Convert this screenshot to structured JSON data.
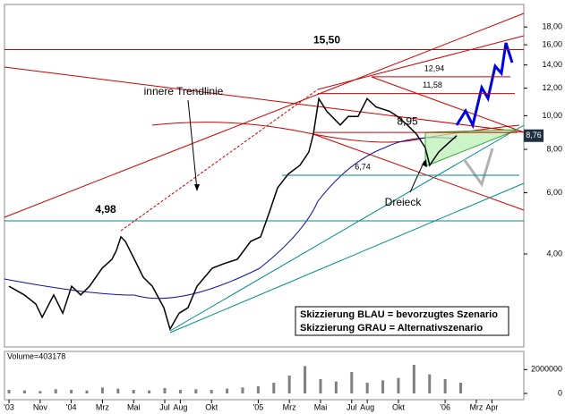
{
  "chart_data": {
    "type": "line",
    "x": [
      0,
      0.98,
      1.72,
      2.13,
      2.87,
      3.45,
      4.02,
      4.6,
      5.17,
      5.98,
      6.61,
      6.9,
      7.18,
      7.47,
      8.05,
      8.62,
      9.2,
      9.94,
      10.34,
      10.92,
      11.49,
      12.07,
      13.05,
      13.79,
      14.66,
      15.52,
      16.15,
      16.67,
      17.24,
      17.93,
      18.68,
      19.25,
      19.54,
      19.89,
      20.4,
      21.26,
      21.78,
      22.41,
      22.99,
      23.56,
      24.43,
      24.94,
      25.57,
      26.15,
      26.72,
      27.01,
      27.59,
      28.16,
      28.74
    ],
    "values": [
      3.23,
      3.05,
      2.87,
      2.63,
      3.05,
      2.7,
      3.23,
      3.05,
      3.23,
      3.64,
      3.86,
      4.1,
      4.48,
      4.35,
      3.86,
      3.43,
      3.23,
      2.8,
      2.43,
      2.7,
      2.8,
      3.23,
      3.64,
      3.75,
      3.86,
      4.35,
      4.48,
      5.2,
      6.2,
      6.8,
      7.2,
      7.86,
      8.86,
      11.2,
      10.3,
      9.4,
      9.95,
      9.95,
      11.2,
      10.6,
      10.3,
      9.95,
      9.4,
      8.86,
      8.1,
      7.2,
      7.86,
      8.3,
      8.76
    ],
    "color": "#000000",
    "log_scale": true,
    "xlim": [
      -0.29,
      33.05
    ],
    "ylim": [
      2.16,
      20.9
    ],
    "xticks": [
      {
        "value": 0,
        "label": "'03"
      },
      {
        "value": 2,
        "label": "Nov"
      },
      {
        "value": 4,
        "label": "'04"
      },
      {
        "value": 6,
        "label": "Mrz"
      },
      {
        "value": 8,
        "label": "Mai"
      },
      {
        "value": 10,
        "label": "Jul"
      },
      {
        "value": 11,
        "label": "Aug"
      },
      {
        "value": 13,
        "label": "Okt"
      },
      {
        "value": 16,
        "label": "'05"
      },
      {
        "value": 18,
        "label": "Mrz"
      },
      {
        "value": 20,
        "label": "Mai"
      },
      {
        "value": 22,
        "label": "Jul"
      },
      {
        "value": 23,
        "label": "Aug"
      },
      {
        "value": 25,
        "label": "Okt"
      },
      {
        "value": 28,
        "label": "'06"
      },
      {
        "value": 30,
        "label": "Mrz"
      },
      {
        "value": 31,
        "label": "Apr"
      }
    ],
    "yticks": [
      {
        "value": 4,
        "label": "4,00"
      },
      {
        "value": 6,
        "label": "6,00"
      },
      {
        "value": 8,
        "label": "8,00"
      },
      {
        "value": 10,
        "label": "10,00"
      },
      {
        "value": 12,
        "label": "12,00"
      },
      {
        "value": 14,
        "label": "14,00"
      },
      {
        "value": 16,
        "label": "16,00"
      },
      {
        "value": 18,
        "label": "18,00"
      }
    ],
    "levels": [
      {
        "value": 15.5,
        "label": "15,50"
      },
      {
        "value": 4.98,
        "label": "4,98"
      },
      {
        "value": 12.94,
        "label": "12,94"
      },
      {
        "value": 11.58,
        "label": "11,58"
      },
      {
        "value": 8.95,
        "label": "8,95"
      },
      {
        "value": 6.74,
        "label": "6,74"
      }
    ],
    "last_price": {
      "value": 8.76,
      "label": "8,76"
    },
    "annotations": [
      "innere Trendlinie",
      "Dreieck"
    ],
    "legend_lines": [
      "Skizzierung BLAU = bevorzugtes Szenario",
      "Skizzierung GRAU = Alternativszenario"
    ],
    "volume": {
      "label": "Volume=403178",
      "x": [
        0,
        1,
        2,
        3,
        4,
        5,
        6,
        7,
        8,
        9,
        10,
        11,
        12,
        13,
        14,
        15,
        16,
        17,
        18,
        19,
        20,
        21,
        22,
        23,
        24,
        25,
        26,
        27,
        28,
        29
      ],
      "values": [
        300000,
        250000,
        200000,
        350000,
        300000,
        250000,
        500000,
        400000,
        300000,
        250000,
        450000,
        300000,
        350000,
        300000,
        400000,
        500000,
        600000,
        900000,
        1500000,
        2300000,
        1200000,
        1000000,
        1800000,
        900000,
        1100000,
        1300000,
        2400000,
        1600000,
        1200000,
        900000
      ],
      "ylim": [
        0,
        3000000
      ],
      "yticks": [
        0,
        2000000
      ],
      "color": "#808080"
    }
  }
}
